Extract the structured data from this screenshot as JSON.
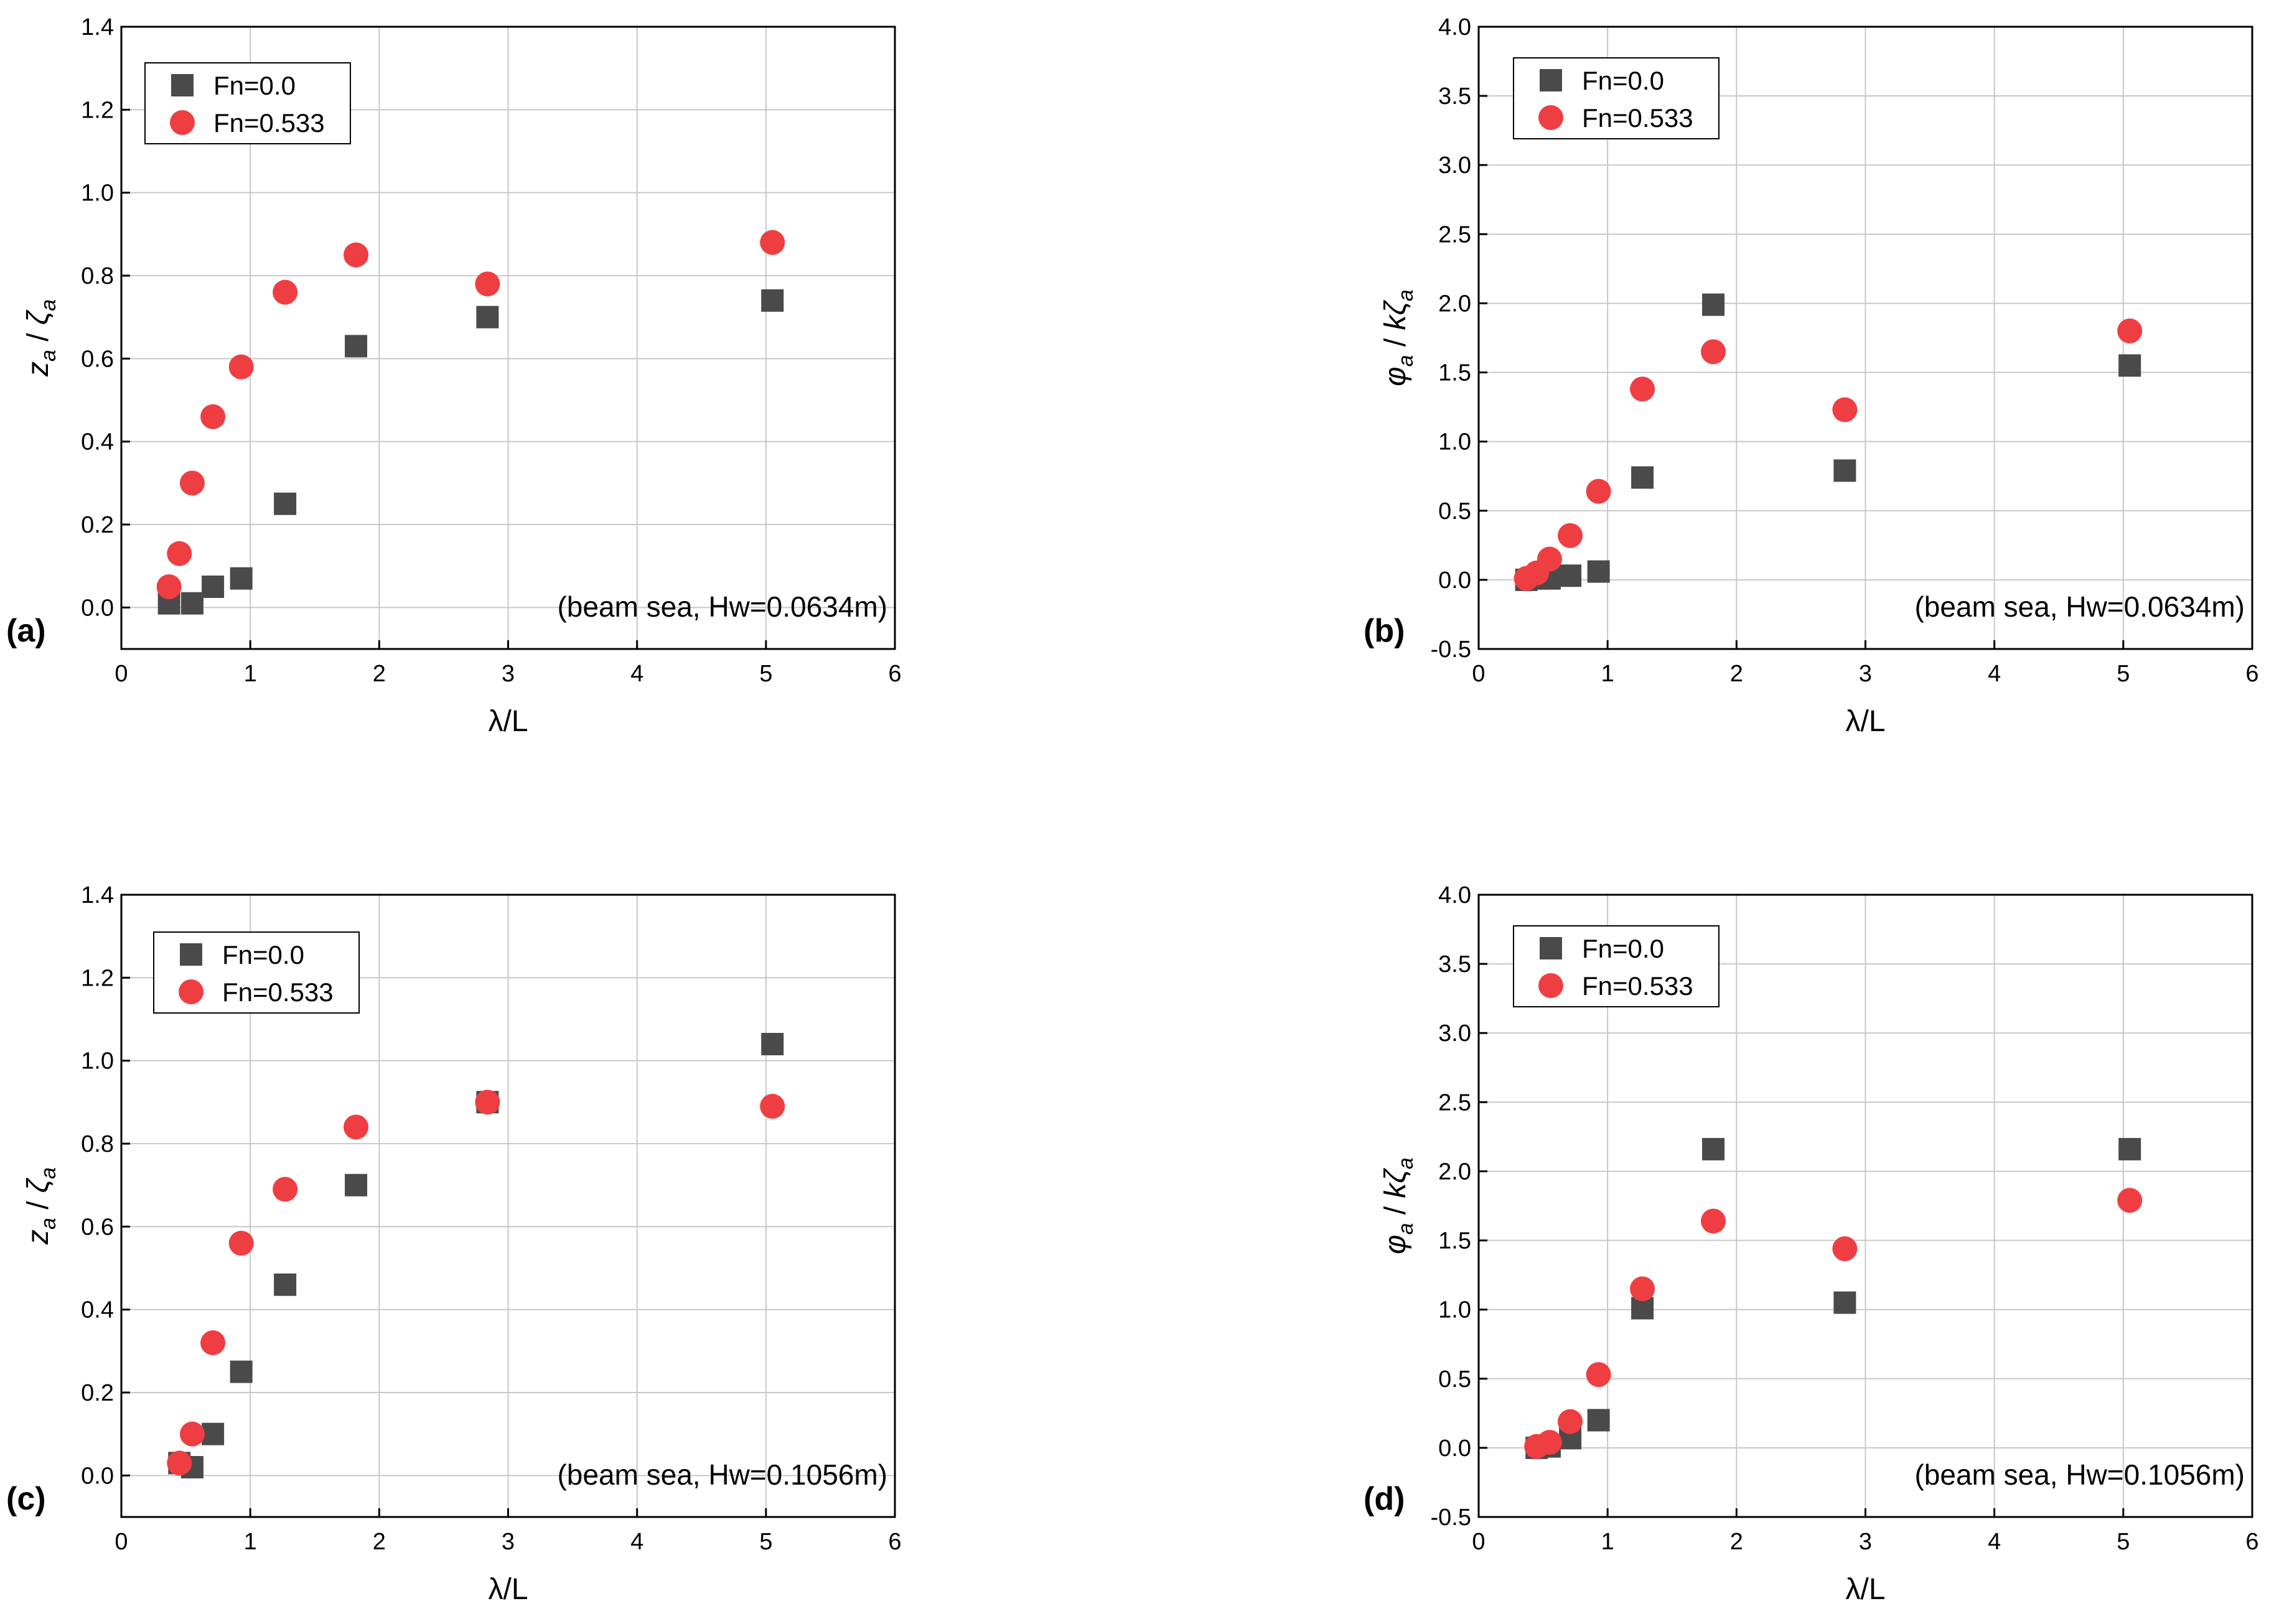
{
  "chart_data": [
    {
      "type": "scatter",
      "panel_label": "(a)",
      "annotation": "(beam sea, Hw=0.0634m)",
      "xlabel": "λ/L",
      "ylabel": "z_a / ζ_a",
      "ylabel_parts": {
        "main1": "z",
        "sub1": "a",
        "sep": " / ",
        "main2": "ζ",
        "sub2": "a"
      },
      "xlim": [
        0,
        6
      ],
      "ylim": [
        -0.1,
        1.4
      ],
      "xticks": [
        0,
        1,
        2,
        3,
        4,
        5,
        6
      ],
      "xtick_labels": [
        "0",
        "1",
        "2",
        "3",
        "4",
        "5",
        "6"
      ],
      "yticks": [
        0.0,
        0.2,
        0.4,
        0.6,
        0.8,
        1.0,
        1.2,
        1.4
      ],
      "ytick_labels": [
        "0.0",
        "0.2",
        "0.4",
        "0.6",
        "0.8",
        "1.0",
        "1.2",
        "1.4"
      ],
      "legend_position": "top-left",
      "series": [
        {
          "name": "Fn=0.0",
          "marker": "square",
          "color": "#4a4a4a",
          "x": [
            0.37,
            0.55,
            0.71,
            0.93,
            1.27,
            1.82,
            2.84,
            5.05
          ],
          "y": [
            0.01,
            0.01,
            0.05,
            0.07,
            0.25,
            0.63,
            0.7,
            0.74
          ]
        },
        {
          "name": "Fn=0.533",
          "marker": "circle",
          "color": "#ef3e42",
          "x": [
            0.37,
            0.45,
            0.55,
            0.71,
            0.93,
            1.27,
            1.82,
            2.84,
            5.05
          ],
          "y": [
            0.05,
            0.13,
            0.3,
            0.46,
            0.58,
            0.76,
            0.85,
            0.78,
            0.88
          ]
        }
      ]
    },
    {
      "type": "scatter",
      "panel_label": "(b)",
      "annotation": "(beam sea, Hw=0.0634m)",
      "xlabel": "λ/L",
      "ylabel": "φ_a / kζ_a",
      "ylabel_parts": {
        "main1": "φ",
        "sub1": "a",
        "sep": " / ",
        "main2": "kζ",
        "sub2": "a"
      },
      "xlim": [
        0,
        6
      ],
      "ylim": [
        -0.5,
        4.0
      ],
      "xticks": [
        0,
        1,
        2,
        3,
        4,
        5,
        6
      ],
      "xtick_labels": [
        "0",
        "1",
        "2",
        "3",
        "4",
        "5",
        "6"
      ],
      "yticks": [
        -0.5,
        0.0,
        0.5,
        1.0,
        1.5,
        2.0,
        2.5,
        3.0,
        3.5,
        4.0
      ],
      "ytick_labels": [
        "-0.5",
        "0.0",
        "0.5",
        "1.0",
        "1.5",
        "2.0",
        "2.5",
        "3.0",
        "3.5",
        "4.0"
      ],
      "legend_position": "top-left",
      "series": [
        {
          "name": "Fn=0.0",
          "marker": "square",
          "color": "#4a4a4a",
          "x": [
            0.37,
            0.45,
            0.55,
            0.71,
            0.93,
            1.27,
            1.82,
            2.84,
            5.05
          ],
          "y": [
            0.0,
            0.01,
            0.01,
            0.03,
            0.06,
            0.74,
            1.99,
            0.79,
            1.55
          ]
        },
        {
          "name": "Fn=0.533",
          "marker": "circle",
          "color": "#ef3e42",
          "x": [
            0.37,
            0.45,
            0.55,
            0.71,
            0.93,
            1.27,
            1.82,
            2.84,
            5.05
          ],
          "y": [
            0.01,
            0.05,
            0.15,
            0.32,
            0.64,
            1.38,
            1.65,
            1.23,
            1.8
          ]
        }
      ]
    },
    {
      "type": "scatter",
      "panel_label": "(c)",
      "annotation": "(beam sea, Hw=0.1056m)",
      "xlabel": "λ/L",
      "ylabel": "z_a / ζ_a",
      "ylabel_parts": {
        "main1": "z",
        "sub1": "a",
        "sep": " / ",
        "main2": "ζ",
        "sub2": "a"
      },
      "xlim": [
        0,
        6
      ],
      "ylim": [
        -0.1,
        1.4
      ],
      "xticks": [
        0,
        1,
        2,
        3,
        4,
        5,
        6
      ],
      "xtick_labels": [
        "0",
        "1",
        "2",
        "3",
        "4",
        "5",
        "6"
      ],
      "yticks": [
        0.0,
        0.2,
        0.4,
        0.6,
        0.8,
        1.0,
        1.2,
        1.4
      ],
      "ytick_labels": [
        "0.0",
        "0.2",
        "0.4",
        "0.6",
        "0.8",
        "1.0",
        "1.2",
        "1.4"
      ],
      "legend_position": "top-left",
      "series": [
        {
          "name": "Fn=0.0",
          "marker": "square",
          "color": "#4a4a4a",
          "x": [
            0.45,
            0.55,
            0.71,
            0.93,
            1.27,
            1.82,
            2.84,
            5.05
          ],
          "y": [
            0.03,
            0.02,
            0.1,
            0.25,
            0.46,
            0.7,
            0.9,
            1.04
          ]
        },
        {
          "name": "Fn=0.533",
          "marker": "circle",
          "color": "#ef3e42",
          "x": [
            0.45,
            0.55,
            0.71,
            0.93,
            1.27,
            1.82,
            2.84,
            5.05
          ],
          "y": [
            0.03,
            0.1,
            0.32,
            0.56,
            0.69,
            0.84,
            0.9,
            0.89
          ]
        }
      ]
    },
    {
      "type": "scatter",
      "panel_label": "(d)",
      "annotation": "(beam sea, Hw=0.1056m)",
      "xlabel": "λ/L",
      "ylabel": "φ_a / kζ_a",
      "ylabel_parts": {
        "main1": "φ",
        "sub1": "a",
        "sep": " / ",
        "main2": "kζ",
        "sub2": "a"
      },
      "xlim": [
        0,
        6
      ],
      "ylim": [
        -0.5,
        4.0
      ],
      "xticks": [
        0,
        1,
        2,
        3,
        4,
        5,
        6
      ],
      "xtick_labels": [
        "0",
        "1",
        "2",
        "3",
        "4",
        "5",
        "6"
      ],
      "yticks": [
        -0.5,
        0.0,
        0.5,
        1.0,
        1.5,
        2.0,
        2.5,
        3.0,
        3.5,
        4.0
      ],
      "ytick_labels": [
        "-0.5",
        "0.0",
        "0.5",
        "1.0",
        "1.5",
        "2.0",
        "2.5",
        "3.0",
        "3.5",
        "4.0"
      ],
      "legend_position": "top-left",
      "series": [
        {
          "name": "Fn=0.0",
          "marker": "square",
          "color": "#4a4a4a",
          "x": [
            0.45,
            0.55,
            0.71,
            0.93,
            1.27,
            1.82,
            2.84,
            5.05
          ],
          "y": [
            0.0,
            0.01,
            0.07,
            0.2,
            1.01,
            2.16,
            1.05,
            2.16
          ]
        },
        {
          "name": "Fn=0.533",
          "marker": "circle",
          "color": "#ef3e42",
          "x": [
            0.45,
            0.55,
            0.71,
            0.93,
            1.27,
            1.82,
            2.84,
            5.05
          ],
          "y": [
            0.01,
            0.04,
            0.19,
            0.53,
            1.15,
            1.64,
            1.44,
            1.79
          ]
        }
      ]
    }
  ]
}
